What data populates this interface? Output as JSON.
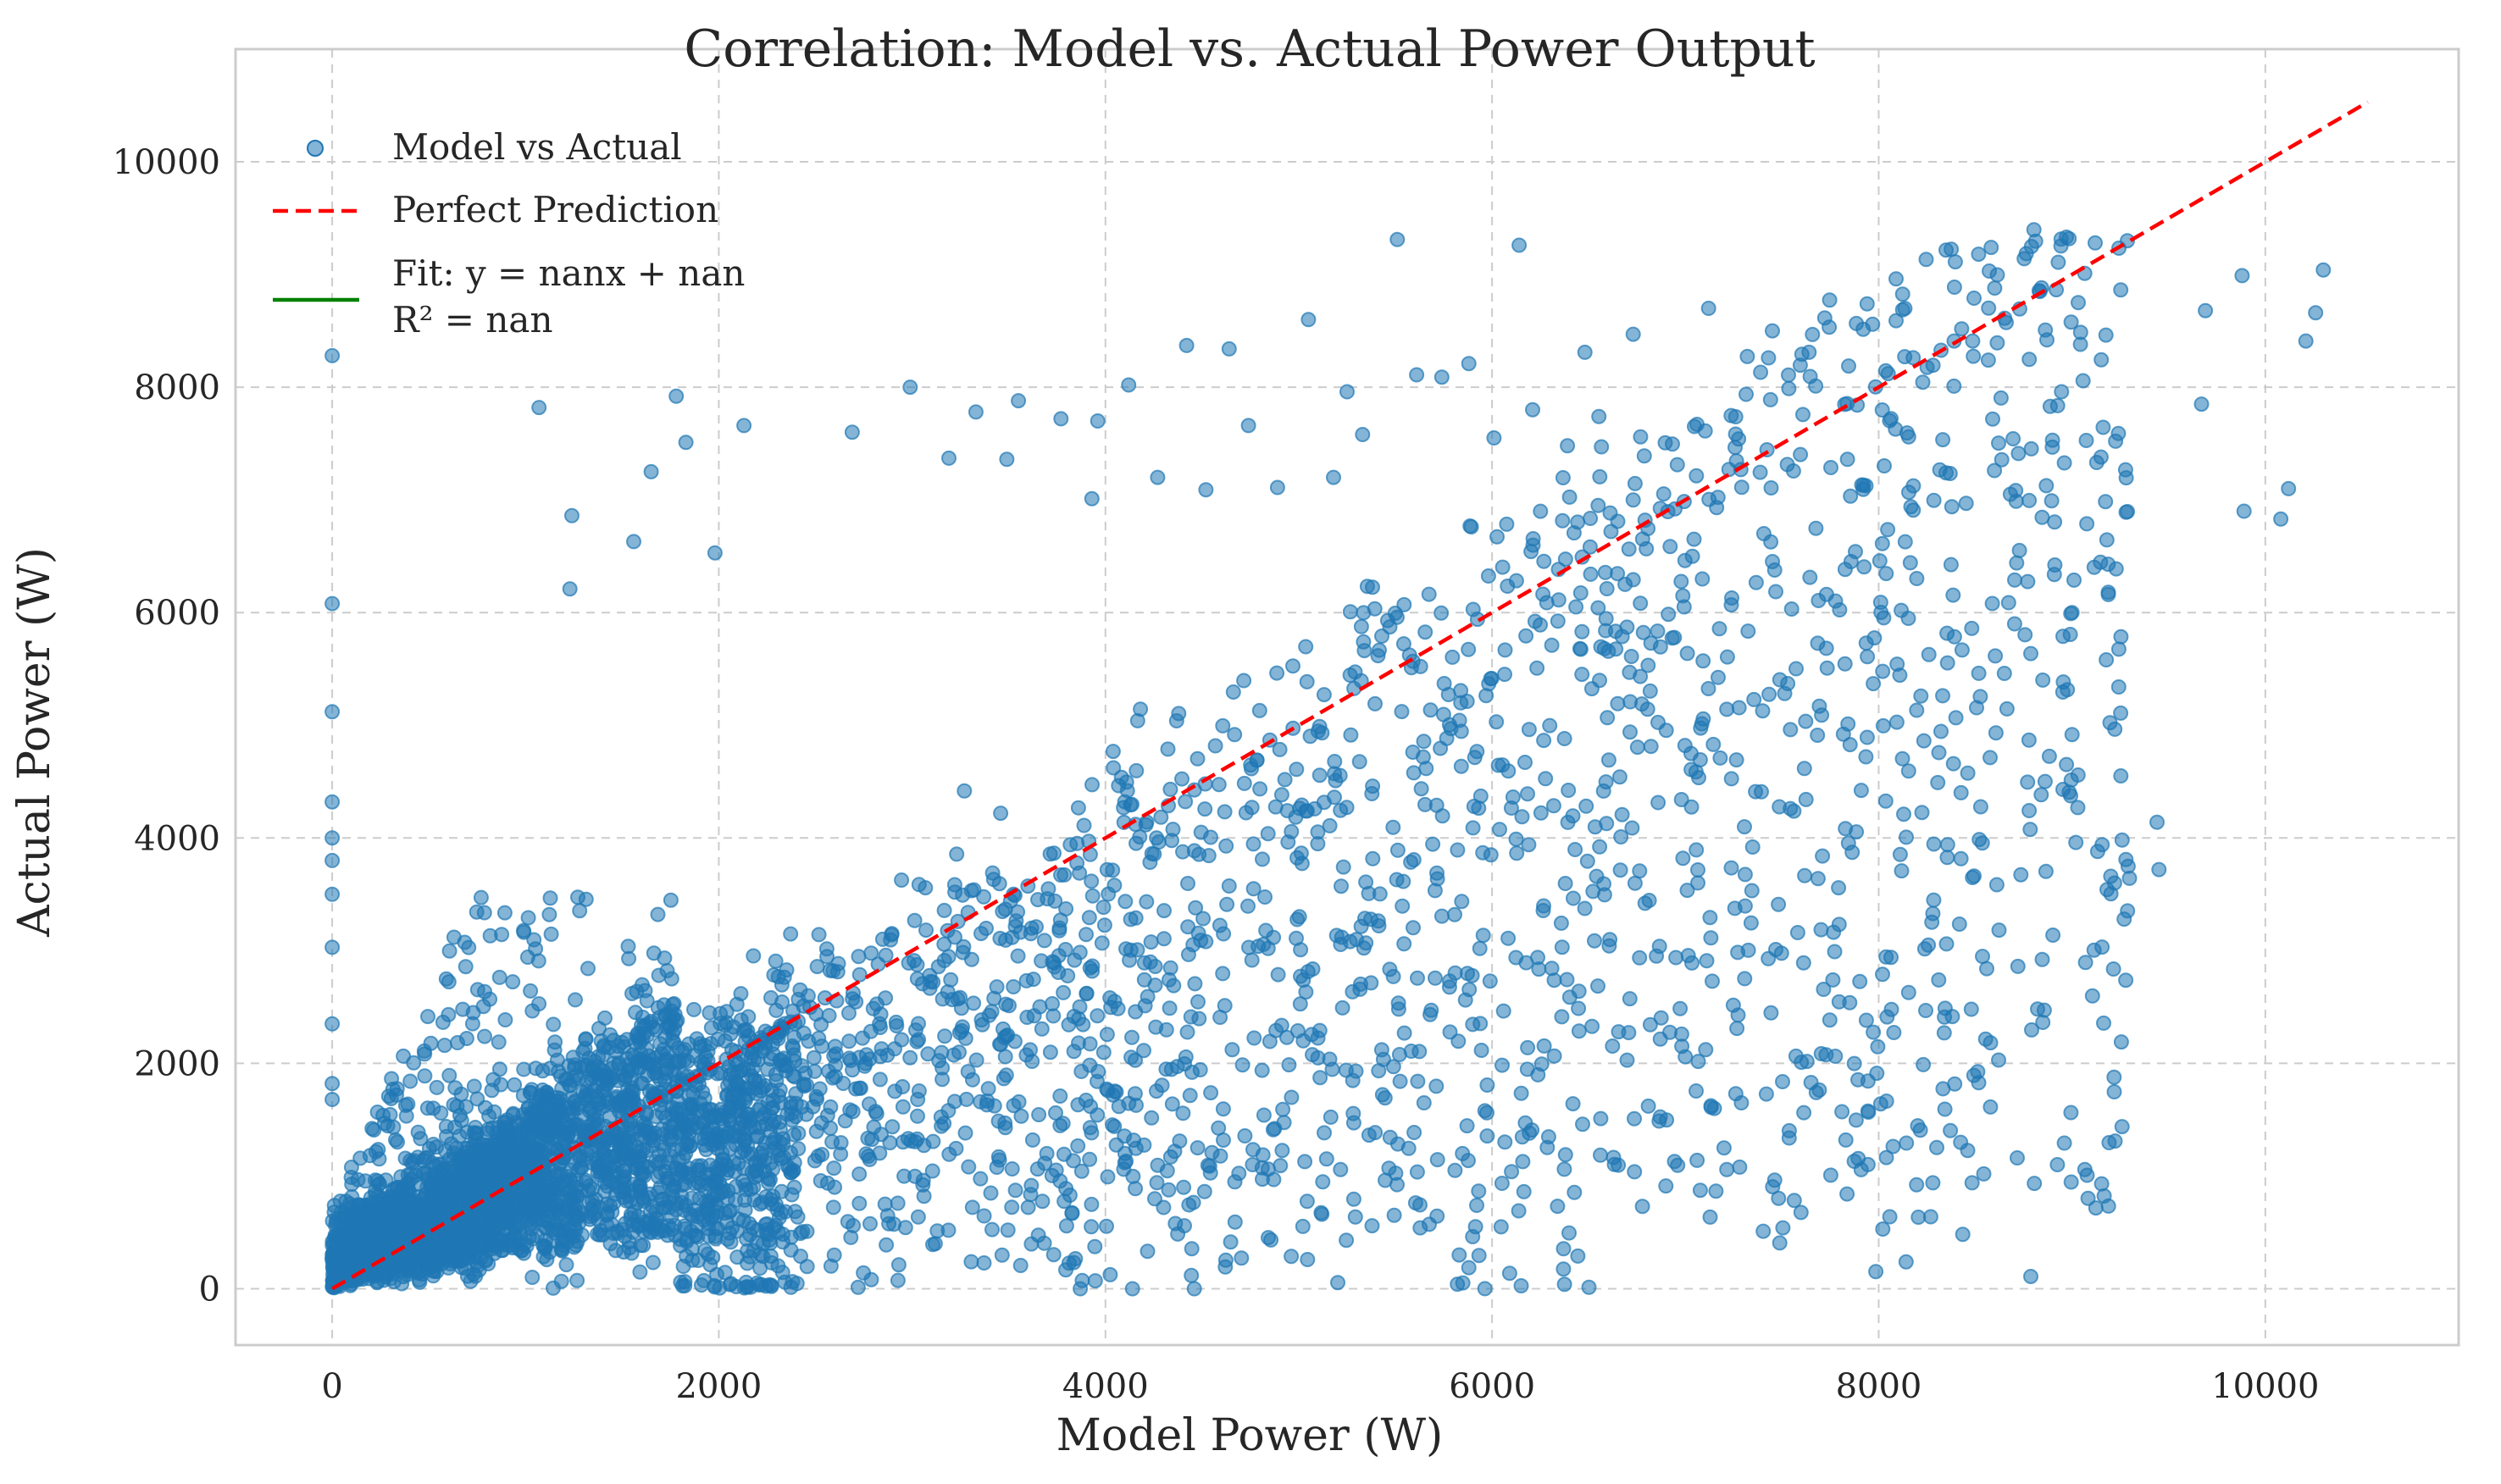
{
  "chart_data": {
    "type": "scatter",
    "title": "Correlation: Model vs. Actual Power Output",
    "xlabel": "Model Power (W)",
    "ylabel": "Actual Power (W)",
    "xlim": [
      -500,
      11000
    ],
    "ylim": [
      -500,
      11000
    ],
    "xticks": [
      0,
      2000,
      4000,
      6000,
      8000,
      10000
    ],
    "yticks": [
      0,
      2000,
      4000,
      6000,
      8000,
      10000
    ],
    "xtick_labels": [
      "0",
      "2000",
      "4000",
      "6000",
      "8000",
      "10000"
    ],
    "ytick_labels": [
      "0",
      "2000",
      "4000",
      "6000",
      "8000",
      "10000"
    ],
    "grid": true,
    "legend_position": "top-left",
    "legend": [
      "Model vs Actual",
      "Perfect Prediction",
      "Fit: y = nanx + nan",
      "R² = nan"
    ],
    "colors": {
      "scatter": "#1f77b4",
      "perfect_line": "#ff0000",
      "fit_line": "#008000",
      "grid": "#cccccc",
      "frame": "#cccccc"
    },
    "series": [
      {
        "name": "Model vs Actual",
        "type": "scatter",
        "points": [
          [
            0,
            8280
          ],
          [
            0,
            6080
          ],
          [
            0,
            5120
          ],
          [
            0,
            4320
          ],
          [
            0,
            4000
          ],
          [
            0,
            3800
          ],
          [
            0,
            3500
          ],
          [
            0,
            3030
          ],
          [
            0,
            2350
          ],
          [
            0,
            1820
          ],
          [
            0,
            1680
          ],
          [
            1070,
            7820
          ],
          [
            1240,
            6860
          ],
          [
            1230,
            6210
          ],
          [
            1560,
            6630
          ],
          [
            1650,
            7250
          ],
          [
            1780,
            7920
          ],
          [
            1830,
            7510
          ],
          [
            1980,
            6530
          ],
          [
            2130,
            7660
          ],
          [
            2690,
            7600
          ],
          [
            2990,
            8000
          ],
          [
            3190,
            7370
          ],
          [
            3330,
            7780
          ],
          [
            3490,
            7360
          ],
          [
            3550,
            7880
          ],
          [
            3770,
            7720
          ],
          [
            3960,
            7700
          ],
          [
            3930,
            7010
          ],
          [
            4120,
            8020
          ],
          [
            4420,
            8370
          ],
          [
            4640,
            8340
          ],
          [
            5050,
            8600
          ],
          [
            5510,
            9310
          ],
          [
            6140,
            9260
          ],
          [
            9120,
            9280
          ],
          [
            10300,
            9040
          ],
          [
            10260,
            8660
          ],
          [
            10210,
            8410
          ],
          [
            10120,
            7100
          ],
          [
            10080,
            6830
          ],
          [
            9890,
            6900
          ],
          [
            9880,
            8990
          ],
          [
            9690,
            8680
          ],
          [
            9670,
            7850
          ],
          [
            9450,
            3720
          ],
          [
            9440,
            4140
          ],
          [
            9220,
            3600
          ],
          [
            9020,
            3960
          ],
          [
            9030,
            4270
          ],
          [
            8280,
            940
          ],
          [
            8340,
            2410
          ],
          [
            7830,
            1320
          ],
          [
            8010,
            1640
          ],
          [
            7650,
            1830
          ],
          [
            7600,
            2010
          ],
          [
            7200,
            1250
          ],
          [
            7150,
            1600
          ],
          [
            5830,
            300
          ],
          [
            4460,
            0
          ],
          [
            4140,
            0
          ],
          [
            3870,
            0
          ],
          [
            9000,
            6000
          ],
          [
            9240,
            7590
          ],
          [
            9150,
            7380
          ],
          [
            8870,
            8420
          ],
          [
            8600,
            8880
          ],
          [
            8390,
            8410
          ],
          [
            8090,
            8590
          ],
          [
            7940,
            8740
          ],
          [
            7640,
            8310
          ],
          [
            7450,
            8500
          ],
          [
            7430,
            8260
          ],
          [
            7120,
            8700
          ],
          [
            7060,
            7670
          ],
          [
            6730,
            8470
          ],
          [
            6480,
            8310
          ],
          [
            6390,
            7480
          ],
          [
            6210,
            7800
          ],
          [
            6010,
            7550
          ],
          [
            5880,
            8210
          ],
          [
            5740,
            8090
          ],
          [
            5610,
            8110
          ],
          [
            5330,
            7580
          ],
          [
            5250,
            7960
          ],
          [
            5180,
            7200
          ],
          [
            4890,
            7110
          ],
          [
            4740,
            7660
          ],
          [
            4520,
            7090
          ],
          [
            4270,
            7200
          ]
        ]
      },
      {
        "name": "Perfect Prediction",
        "type": "line",
        "style": "dashed",
        "points": [
          [
            0,
            0
          ],
          [
            10530,
            10530
          ]
        ]
      }
    ],
    "fit": {
      "slope": "nan",
      "intercept": "nan",
      "r2": "nan",
      "color": "green"
    }
  }
}
